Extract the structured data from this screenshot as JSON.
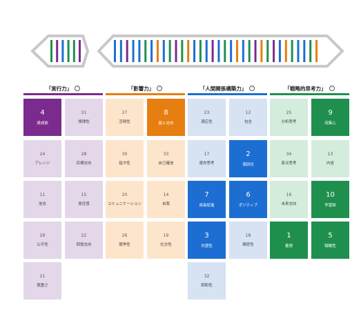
{
  "colors": {
    "execution": {
      "accent": "#7b2a8e",
      "light": "#e3d7e9"
    },
    "influence": {
      "accent": "#e67e10",
      "light": "#fde5cc"
    },
    "relationship": {
      "accent": "#1c6ed2",
      "light": "#d7e2f2"
    },
    "strategic": {
      "accent": "#1f8f4e",
      "light": "#d3ecdc"
    },
    "frame": "#c8c8c8"
  },
  "dna": {
    "left_stripes": [
      "strategic",
      "execution",
      "relationship",
      "strategic",
      "strategic",
      "execution"
    ],
    "right_stripes": [
      "relationship",
      "relationship",
      "execution",
      "relationship",
      "relationship",
      "strategic",
      "relationship",
      "influence",
      "relationship",
      "strategic",
      "execution",
      "strategic",
      "influence",
      "relationship",
      "strategic",
      "relationship",
      "execution",
      "relationship",
      "strategic",
      "relationship",
      "influence",
      "relationship",
      "strategic",
      "execution",
      "influence",
      "strategic",
      "execution",
      "relationship",
      "influence",
      "strategic",
      "relationship",
      "relationship",
      "strategic",
      "influence"
    ]
  },
  "categories": [
    {
      "key": "execution",
      "title": "「実行力」",
      "info": "i",
      "tiles": [
        {
          "rank": "4",
          "name": "達成欲",
          "top": true
        },
        {
          "rank": "31",
          "name": "規律性",
          "top": false
        },
        {
          "rank": "24",
          "name": "アレンジ",
          "top": false
        },
        {
          "rank": "28",
          "name": "目標志向",
          "top": false
        },
        {
          "rank": "11",
          "name": "信念",
          "top": false
        },
        {
          "rank": "15",
          "name": "責任感",
          "top": false
        },
        {
          "rank": "29",
          "name": "公平性",
          "top": false
        },
        {
          "rank": "22",
          "name": "回復志向",
          "top": false
        },
        {
          "rank": "21",
          "name": "慎重さ",
          "top": false
        }
      ]
    },
    {
      "key": "influence",
      "title": "「影響力」",
      "info": "i",
      "tiles": [
        {
          "rank": "27",
          "name": "活発性",
          "top": false
        },
        {
          "rank": "8",
          "name": "最上志向",
          "top": true
        },
        {
          "rank": "30",
          "name": "指令性",
          "top": false
        },
        {
          "rank": "33",
          "name": "自己確信",
          "top": false
        },
        {
          "rank": "20",
          "name": "コミュニケーション",
          "top": false
        },
        {
          "rank": "14",
          "name": "自我",
          "top": false
        },
        {
          "rank": "26",
          "name": "競争性",
          "top": false
        },
        {
          "rank": "19",
          "name": "社交性",
          "top": false
        }
      ]
    },
    {
      "key": "relationship",
      "title": "「人間関係構築力」",
      "info": "i",
      "tiles": [
        {
          "rank": "23",
          "name": "適応性",
          "top": false
        },
        {
          "rank": "12",
          "name": "包含",
          "top": false
        },
        {
          "rank": "17",
          "name": "運命思考",
          "top": false
        },
        {
          "rank": "2",
          "name": "個別化",
          "top": true
        },
        {
          "rank": "7",
          "name": "成長促進",
          "top": true
        },
        {
          "rank": "6",
          "name": "ポジティブ",
          "top": true
        },
        {
          "rank": "3",
          "name": "共感性",
          "top": true
        },
        {
          "rank": "18",
          "name": "親密性",
          "top": false
        },
        {
          "rank": "32",
          "name": "調和性",
          "top": false
        }
      ]
    },
    {
      "key": "strategic",
      "title": "「戦略的思考力」",
      "info": "i",
      "tiles": [
        {
          "rank": "25",
          "name": "分析思考",
          "top": false
        },
        {
          "rank": "9",
          "name": "収集心",
          "top": true
        },
        {
          "rank": "34",
          "name": "原点思考",
          "top": false
        },
        {
          "rank": "13",
          "name": "内省",
          "top": false
        },
        {
          "rank": "16",
          "name": "未来志向",
          "top": false
        },
        {
          "rank": "10",
          "name": "学習欲",
          "top": true
        },
        {
          "rank": "1",
          "name": "着想",
          "top": true
        },
        {
          "rank": "5",
          "name": "戦略性",
          "top": true
        }
      ]
    }
  ]
}
